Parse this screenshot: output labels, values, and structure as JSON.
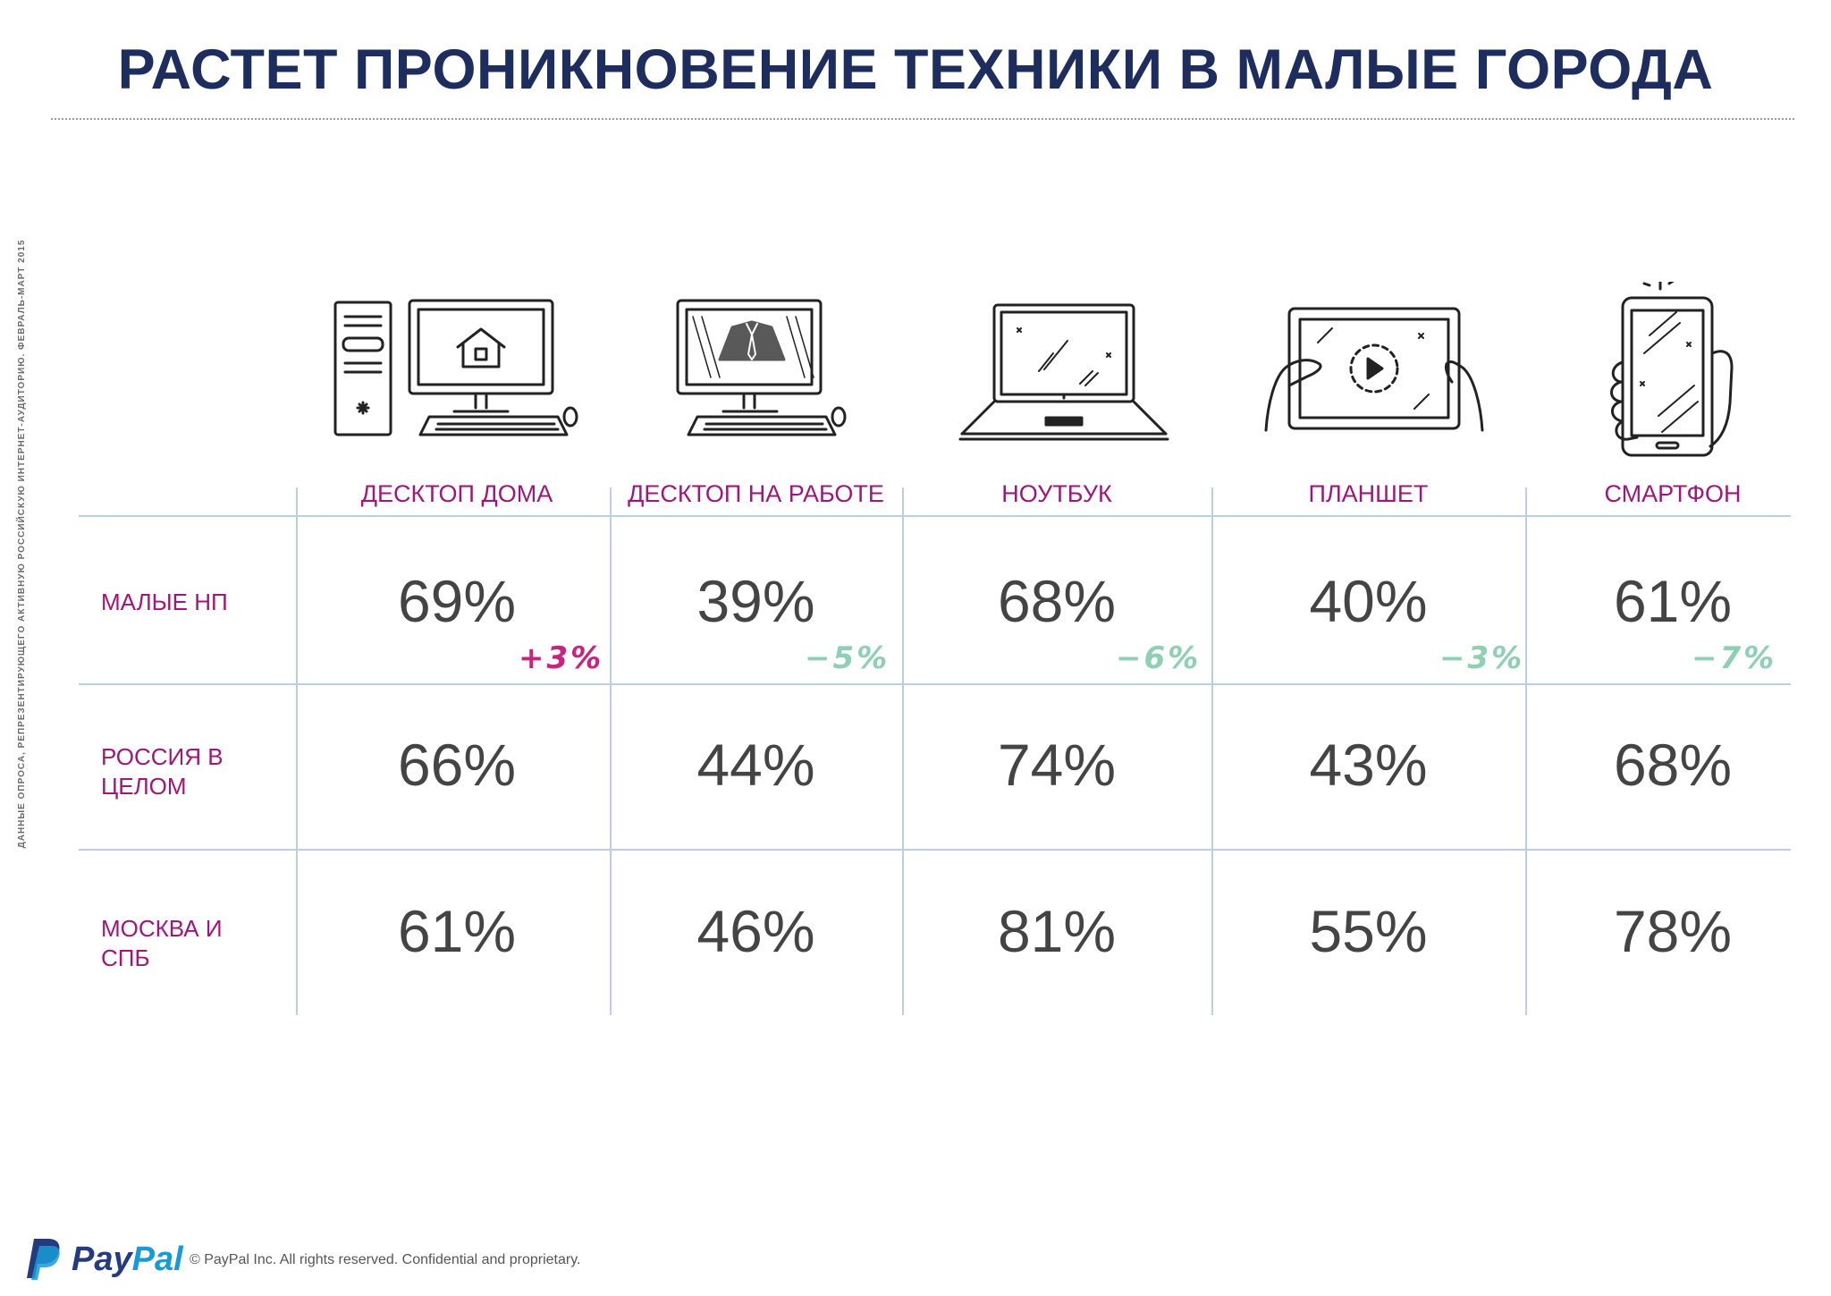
{
  "title": "РАСТЕТ ПРОНИКНОВЕНИЕ ТЕХНИКИ В МАЛЫЕ ГОРОДА",
  "side_note": "ДАННЫЕ ОПРОСА, РЕПРЕЗЕНТИРУЮЩЕГО АКТИВНУЮ РОССИЙСКУЮ ИНТЕРНЕТ-АУДИТОРИЮ. ФЕВРАЛЬ-МАРТ 2015",
  "columns": [
    {
      "label": "ДЕСКТОП ДОМА",
      "icon": "home-desktop-icon"
    },
    {
      "label": "ДЕСКТОП НА РАБОТЕ",
      "icon": "work-desktop-icon"
    },
    {
      "label": "НОУТБУК",
      "icon": "laptop-icon"
    },
    {
      "label": "ПЛАНШЕТ",
      "icon": "tablet-icon"
    },
    {
      "label": "СМАРТФОН",
      "icon": "smartphone-icon"
    }
  ],
  "rows": [
    {
      "label": "МАЛЫЕ НП",
      "values": [
        "69%",
        "39%",
        "68%",
        "40%",
        "61%"
      ]
    },
    {
      "label": "РОССИЯ В ЦЕЛОМ",
      "values": [
        "66%",
        "44%",
        "74%",
        "43%",
        "68%"
      ]
    },
    {
      "label": "МОСКВА И СПБ",
      "values": [
        "61%",
        "46%",
        "81%",
        "55%",
        "78%"
      ]
    }
  ],
  "deltas": [
    "+3%",
    "−5%",
    "−6%",
    "−3%",
    "−7%"
  ],
  "colors": {
    "title": "#1c2d5e",
    "label": "#a0167a",
    "delta_positive": "#c8237f",
    "delta_negative": "#8fcfb4",
    "grid": "#bccde6"
  },
  "footer": {
    "brand_pay": "Pay",
    "brand_pal": "Pal",
    "copyright": "© PayPal Inc. All rights reserved. Confidential and proprietary."
  }
}
